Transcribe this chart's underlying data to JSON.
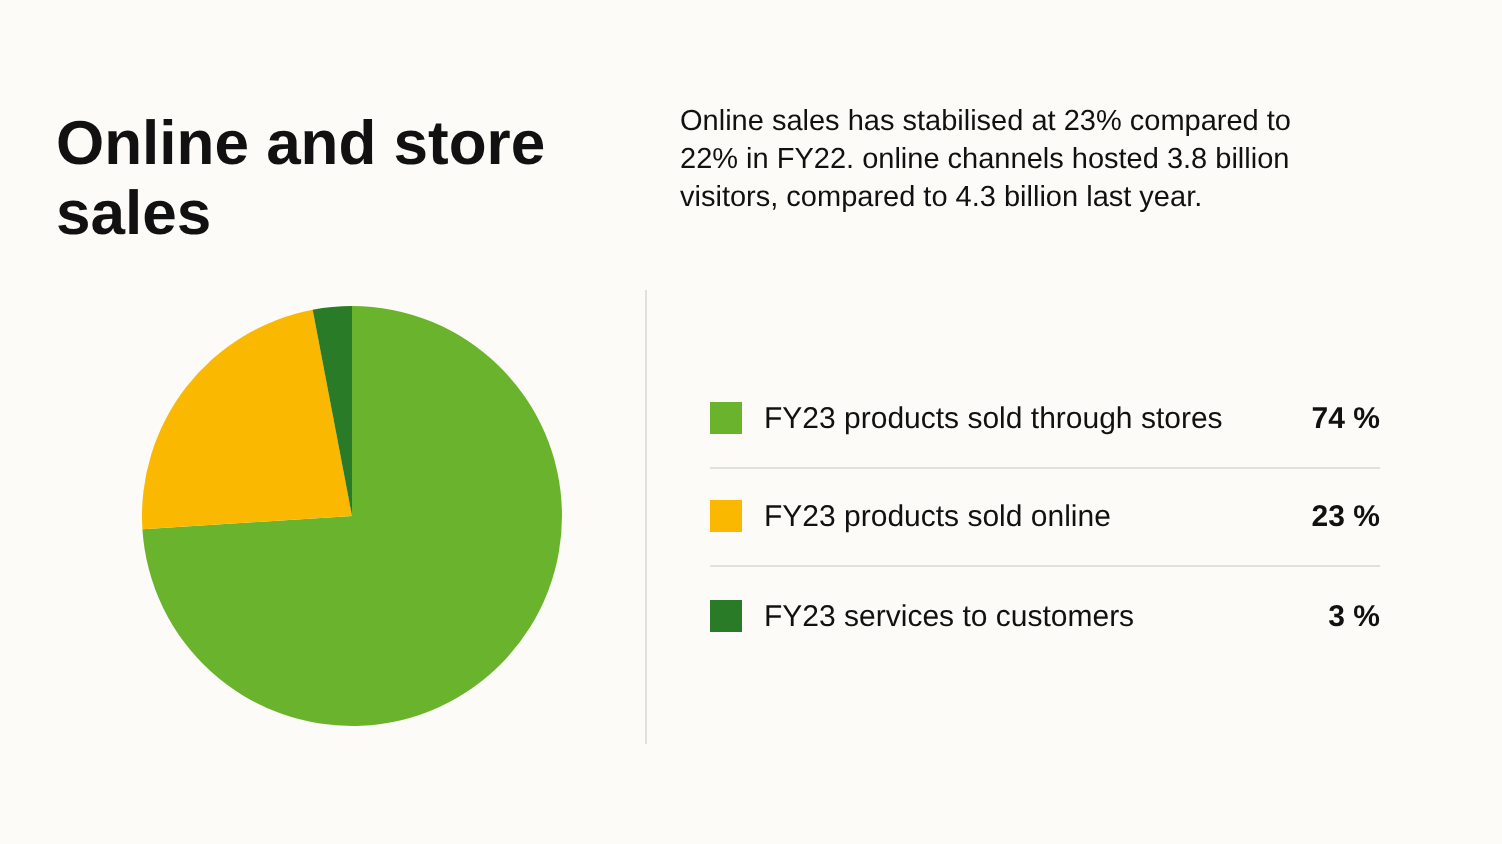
{
  "chart_data": {
    "type": "pie",
    "title": "Online and store sales",
    "subtitle": "Online sales has stabilised at 23% compared to 22% in FY22. online channels hosted 3.8 billion visitors, compared to 4.3 billion last year.",
    "categories": [
      "FY23 products sold through stores",
      "FY23 products sold online",
      "FY23 services to customers"
    ],
    "values": [
      74,
      23,
      3
    ],
    "colors": [
      "#6ab42d",
      "#fbb800",
      "#2a7b27"
    ],
    "value_labels": [
      "74 %",
      "23 %",
      "3 %"
    ],
    "legend": "right"
  }
}
